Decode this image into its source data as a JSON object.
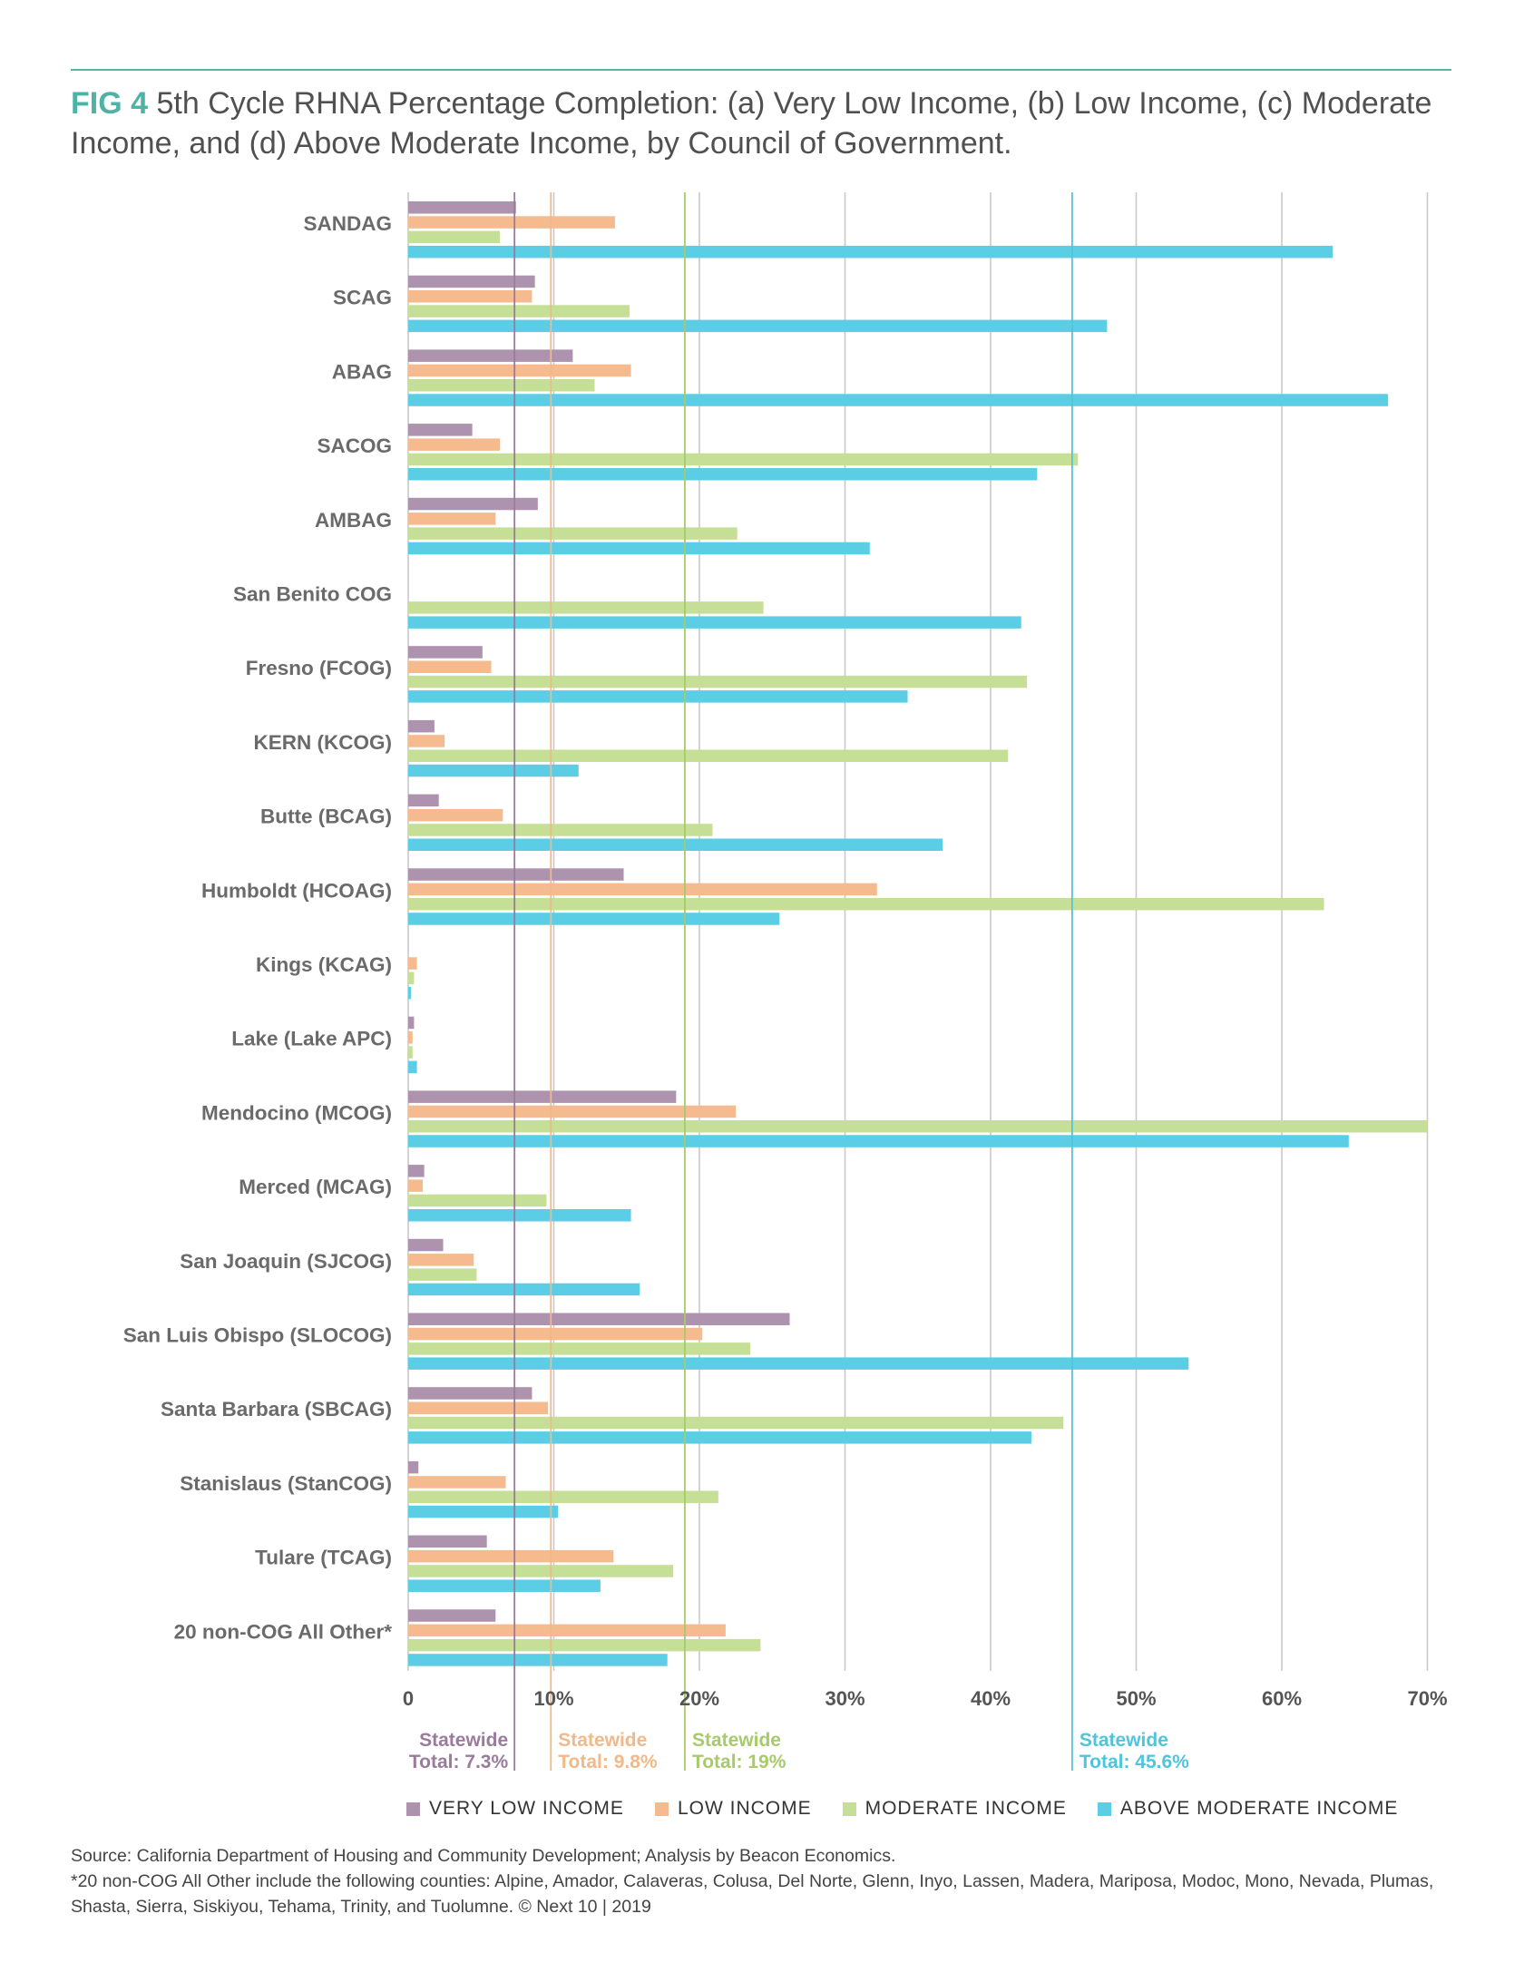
{
  "header": {
    "fig_label": "FIG 4",
    "title": "5th Cycle RHNA Percentage Completion: (a) Very Low Income, (b) Low Income, (c) Moderate Income, and (d) Above Moderate Income, by Council of Government."
  },
  "chart_data": {
    "type": "bar",
    "orientation": "horizontal",
    "categories": [
      "SANDAG",
      "SCAG",
      "ABAG",
      "SACOG",
      "AMBAG",
      "San Benito COG",
      "Fresno (FCOG)",
      "KERN (KCOG)",
      "Butte (BCAG)",
      "Humboldt (HCOAG)",
      "Kings (KCAG)",
      "Lake (Lake APC)",
      "Mendocino (MCOG)",
      "Merced (MCAG)",
      "San Joaquin (SJCOG)",
      "San Luis Obispo (SLOCOG)",
      "Santa Barbara (SBCAG)",
      "Stanislaus (StanCOG)",
      "Tulare (TCAG)",
      "20 non-COG All Other*"
    ],
    "series": [
      {
        "name": "VERY LOW INCOME",
        "color": "#ad93ad",
        "values": [
          7.4,
          8.7,
          11.3,
          4.4,
          8.9,
          0,
          5.1,
          1.8,
          2.1,
          14.8,
          0,
          0.4,
          18.4,
          1.1,
          2.4,
          26.2,
          8.5,
          0.7,
          5.4,
          6.0
        ]
      },
      {
        "name": "LOW INCOME",
        "color": "#f5bb8f",
        "values": [
          14.2,
          8.5,
          15.3,
          6.3,
          6.0,
          0,
          5.7,
          2.5,
          6.5,
          32.2,
          0.6,
          0.3,
          22.5,
          1.0,
          4.5,
          20.2,
          9.6,
          6.7,
          14.1,
          21.8
        ]
      },
      {
        "name": "MODERATE INCOME",
        "color": "#c6df96",
        "values": [
          6.3,
          15.2,
          12.8,
          46.0,
          22.6,
          24.4,
          42.5,
          41.2,
          20.9,
          62.9,
          0.4,
          0.3,
          70.0,
          9.5,
          4.7,
          23.5,
          45.0,
          21.3,
          18.2,
          24.2
        ]
      },
      {
        "name": "ABOVE MODERATE INCOME",
        "color": "#5bcee5",
        "values": [
          63.5,
          48.0,
          67.3,
          43.2,
          31.7,
          42.1,
          34.3,
          11.7,
          36.7,
          25.5,
          0.2,
          0.6,
          64.6,
          15.3,
          15.9,
          53.6,
          42.8,
          10.3,
          13.2,
          17.8
        ]
      }
    ],
    "xlim": [
      0,
      70
    ],
    "x_ticks": [
      "0",
      "10%",
      "20%",
      "30%",
      "40%",
      "50%",
      "60%",
      "70%"
    ],
    "x_tick_values": [
      0,
      10,
      20,
      30,
      40,
      50,
      60,
      70
    ],
    "grid": true,
    "legend_position": "bottom",
    "reference_lines": [
      {
        "value": 7.3,
        "label_line1": "Statewide",
        "label_line2": "Total: 7.3%",
        "color": "#9b7b9b"
      },
      {
        "value": 9.8,
        "label_line1": "Statewide",
        "label_line2": "Total: 9.8%",
        "color": "#f2b888"
      },
      {
        "value": 19,
        "label_line1": "Statewide",
        "label_line2": "Total: 19%",
        "color": "#a7ca6a"
      },
      {
        "value": 45.6,
        "label_line1": "Statewide",
        "label_line2": "Total: 45.6%",
        "color": "#52c4d9"
      }
    ]
  },
  "legend": {
    "items": [
      {
        "label": "VERY LOW INCOME",
        "color": "#ad93ad"
      },
      {
        "label": "LOW INCOME",
        "color": "#f5bb8f"
      },
      {
        "label": "MODERATE INCOME",
        "color": "#c6df96"
      },
      {
        "label": "ABOVE MODERATE INCOME",
        "color": "#5bcee5"
      }
    ]
  },
  "footer": {
    "source": "Source: California Department of Housing and Community Development; Analysis by Beacon Economics.",
    "note": "*20 non-COG All Other include the following counties: Alpine, Amador, Calaveras, Colusa, Del Norte, Glenn, Inyo, Lassen, Madera, Mariposa, Modoc, Mono, Nevada, Plumas, Shasta, Sierra, Siskiyou, Tehama, Trinity, and Tuolumne. © Next 10 | 2019"
  }
}
